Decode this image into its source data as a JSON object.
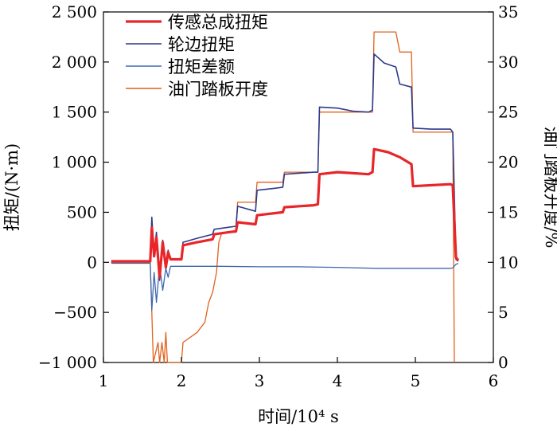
{
  "chart_data": {
    "type": "line",
    "xlabel": "时间/10⁴ s",
    "ylabel_left": "扭矩/(N·m)",
    "ylabel_right": "油门踏板开度/%",
    "xlim": [
      1,
      6
    ],
    "ylim_left": [
      -1000,
      2500
    ],
    "ylim_right": [
      0,
      35
    ],
    "x_ticks": [
      1,
      2,
      3,
      4,
      5,
      6
    ],
    "x_tick_labels": [
      "1",
      "2",
      "3",
      "4",
      "5",
      "6"
    ],
    "y_ticks_left": [
      -1000,
      -500,
      0,
      500,
      1000,
      1500,
      2000,
      2500
    ],
    "y_tick_labels_left": [
      "−1 000",
      "−500",
      "0",
      "500",
      "1 000",
      "1 500",
      "2 000",
      "2 500"
    ],
    "y_ticks_right": [
      0,
      5,
      10,
      15,
      20,
      25,
      30,
      35
    ],
    "y_tick_labels_right": [
      "0",
      "5",
      "10",
      "15",
      "20",
      "25",
      "30",
      "35"
    ],
    "grid": false,
    "legend_position": "top-left",
    "series": [
      {
        "name": "传感总成扭矩",
        "axis": "left",
        "color": "#e8262a",
        "points": [
          [
            1.1,
            10
          ],
          [
            1.6,
            10
          ],
          [
            1.62,
            350
          ],
          [
            1.65,
            60
          ],
          [
            1.68,
            250
          ],
          [
            1.72,
            -150
          ],
          [
            1.76,
            200
          ],
          [
            1.8,
            -50
          ],
          [
            1.83,
            100
          ],
          [
            1.86,
            30
          ],
          [
            2.0,
            30
          ],
          [
            2.02,
            170
          ],
          [
            2.2,
            200
          ],
          [
            2.4,
            230
          ],
          [
            2.42,
            280
          ],
          [
            2.6,
            300
          ],
          [
            2.7,
            310
          ],
          [
            2.72,
            400
          ],
          [
            2.95,
            380
          ],
          [
            2.97,
            470
          ],
          [
            3.3,
            500
          ],
          [
            3.32,
            550
          ],
          [
            3.7,
            570
          ],
          [
            3.75,
            580
          ],
          [
            3.77,
            880
          ],
          [
            4.0,
            900
          ],
          [
            4.2,
            890
          ],
          [
            4.4,
            880
          ],
          [
            4.45,
            900
          ],
          [
            4.47,
            1130
          ],
          [
            4.65,
            1100
          ],
          [
            4.8,
            1050
          ],
          [
            4.95,
            980
          ],
          [
            4.97,
            760
          ],
          [
            5.2,
            770
          ],
          [
            5.45,
            780
          ],
          [
            5.48,
            770
          ],
          [
            5.52,
            50
          ],
          [
            5.55,
            20
          ]
        ]
      },
      {
        "name": "轮边扭矩",
        "axis": "left",
        "color": "#2c3a8c",
        "points": [
          [
            1.1,
            10
          ],
          [
            1.6,
            10
          ],
          [
            1.62,
            450
          ],
          [
            1.65,
            60
          ],
          [
            1.68,
            300
          ],
          [
            1.72,
            -180
          ],
          [
            1.76,
            220
          ],
          [
            1.8,
            -60
          ],
          [
            1.83,
            120
          ],
          [
            1.86,
            30
          ],
          [
            2.0,
            30
          ],
          [
            2.02,
            200
          ],
          [
            2.2,
            240
          ],
          [
            2.4,
            280
          ],
          [
            2.42,
            330
          ],
          [
            2.6,
            350
          ],
          [
            2.7,
            360
          ],
          [
            2.72,
            560
          ],
          [
            2.95,
            510
          ],
          [
            2.97,
            720
          ],
          [
            3.2,
            740
          ],
          [
            3.3,
            750
          ],
          [
            3.32,
            880
          ],
          [
            3.7,
            900
          ],
          [
            3.75,
            900
          ],
          [
            3.77,
            1550
          ],
          [
            4.0,
            1540
          ],
          [
            4.2,
            1510
          ],
          [
            4.4,
            1500
          ],
          [
            4.45,
            1520
          ],
          [
            4.47,
            2080
          ],
          [
            4.6,
            1990
          ],
          [
            4.75,
            1950
          ],
          [
            4.8,
            1780
          ],
          [
            4.95,
            1750
          ],
          [
            4.97,
            1340
          ],
          [
            5.2,
            1330
          ],
          [
            5.45,
            1330
          ],
          [
            5.48,
            1300
          ],
          [
            5.52,
            30
          ],
          [
            5.55,
            10
          ]
        ]
      },
      {
        "name": "扭矩差额",
        "axis": "left",
        "color": "#3f6aaf",
        "points": [
          [
            1.1,
            -10
          ],
          [
            1.6,
            -10
          ],
          [
            1.62,
            -480
          ],
          [
            1.65,
            -100
          ],
          [
            1.68,
            -400
          ],
          [
            1.72,
            -30
          ],
          [
            1.76,
            -280
          ],
          [
            1.8,
            -60
          ],
          [
            1.83,
            -150
          ],
          [
            1.86,
            -40
          ],
          [
            2.0,
            -40
          ],
          [
            2.1,
            -40
          ],
          [
            2.5,
            -40
          ],
          [
            3.0,
            -45
          ],
          [
            3.5,
            -45
          ],
          [
            4.0,
            -50
          ],
          [
            4.5,
            -60
          ],
          [
            4.8,
            -60
          ],
          [
            5.0,
            -60
          ],
          [
            5.2,
            -60
          ],
          [
            5.45,
            -60
          ],
          [
            5.48,
            -55
          ],
          [
            5.52,
            -20
          ],
          [
            5.55,
            -10
          ]
        ]
      },
      {
        "name": "油门踏板开度",
        "axis": "right",
        "color": "#e0621c",
        "points": [
          [
            1.1,
            10
          ],
          [
            1.6,
            10
          ],
          [
            1.62,
            5
          ],
          [
            1.64,
            0
          ],
          [
            1.7,
            2
          ],
          [
            1.72,
            0
          ],
          [
            1.75,
            2
          ],
          [
            1.78,
            0
          ],
          [
            1.8,
            3
          ],
          [
            1.82,
            0
          ],
          [
            2.0,
            0
          ],
          [
            2.02,
            2
          ],
          [
            2.2,
            3
          ],
          [
            2.3,
            4
          ],
          [
            2.35,
            6
          ],
          [
            2.4,
            7
          ],
          [
            2.45,
            9
          ],
          [
            2.48,
            12
          ],
          [
            2.52,
            13
          ],
          [
            2.7,
            13
          ],
          [
            2.72,
            16
          ],
          [
            2.95,
            16
          ],
          [
            2.97,
            18
          ],
          [
            3.3,
            18
          ],
          [
            3.32,
            19
          ],
          [
            3.7,
            19
          ],
          [
            3.75,
            19
          ],
          [
            3.77,
            25
          ],
          [
            4.4,
            25
          ],
          [
            4.45,
            25
          ],
          [
            4.47,
            33
          ],
          [
            4.75,
            33
          ],
          [
            4.8,
            31
          ],
          [
            4.95,
            31
          ],
          [
            4.97,
            23
          ],
          [
            5.45,
            23
          ],
          [
            5.48,
            23
          ],
          [
            5.5,
            0
          ]
        ]
      }
    ]
  }
}
